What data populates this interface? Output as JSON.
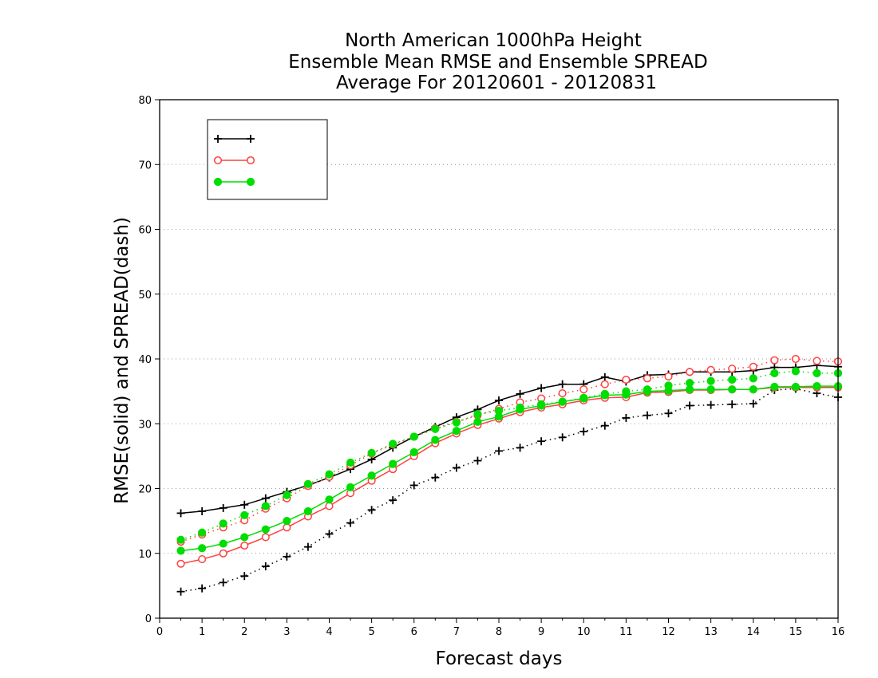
{
  "chart_data": {
    "type": "line",
    "title_lines": [
      "North American 1000hPa Height",
      "Ensemble Mean RMSE and Ensemble SPREAD",
      "Average For 20120601 - 20120831"
    ],
    "xlabel": "Forecast days",
    "ylabel": "RMSE(solid) and SPREAD(dash)",
    "xlim": [
      0,
      16
    ],
    "ylim": [
      0,
      80
    ],
    "xticks": [
      "0",
      "1",
      "2",
      "3",
      "4",
      "5",
      "6",
      "7",
      "8",
      "9",
      "10",
      "11",
      "12",
      "13",
      "14",
      "15",
      "16"
    ],
    "yticks": [
      "0",
      "10",
      "20",
      "30",
      "40",
      "50",
      "60",
      "70",
      "80"
    ],
    "grid": "horizontal dotted",
    "legend_placement": "top-left",
    "x": [
      0.5,
      1.0,
      1.5,
      2.0,
      2.5,
      3.0,
      3.5,
      4.0,
      4.5,
      5.0,
      5.5,
      6.0,
      6.5,
      7.0,
      7.5,
      8.0,
      8.5,
      9.0,
      9.5,
      10.0,
      10.5,
      11.0,
      11.5,
      12.0,
      12.5,
      13.0,
      13.5,
      14.0,
      14.5,
      15.0,
      15.5,
      16.0
    ],
    "series": [
      {
        "name": "",
        "legend_label": "",
        "color": "#000000",
        "marker": "plus",
        "rmse": [
          16.2,
          16.5,
          17.0,
          17.5,
          18.5,
          19.5,
          20.5,
          21.7,
          23.0,
          24.5,
          26.3,
          28.0,
          29.5,
          31.0,
          32.2,
          33.6,
          34.6,
          35.5,
          36.1,
          36.1,
          37.2,
          36.5,
          37.5,
          37.6,
          38.0,
          38.0,
          38.0,
          38.2,
          38.7,
          38.7,
          39.0,
          38.8
        ],
        "spread": [
          4.1,
          4.6,
          5.5,
          6.5,
          8.0,
          9.5,
          11.0,
          13.0,
          14.7,
          16.7,
          18.2,
          20.5,
          21.7,
          23.2,
          24.3,
          25.8,
          26.3,
          27.3,
          27.9,
          28.8,
          29.7,
          30.9,
          31.3,
          31.6,
          32.8,
          32.9,
          33.0,
          33.1,
          35.2,
          35.4,
          34.7,
          34.1
        ]
      },
      {
        "name": "",
        "legend_label": "",
        "color": "#ff4040",
        "marker": "open-circle",
        "rmse": [
          8.4,
          9.1,
          10.0,
          11.2,
          12.5,
          14.0,
          15.7,
          17.3,
          19.3,
          21.2,
          23.0,
          25.0,
          27.0,
          28.5,
          29.8,
          30.8,
          31.8,
          32.5,
          33.0,
          33.6,
          34.0,
          34.1,
          34.8,
          34.9,
          35.2,
          35.2,
          35.3,
          35.3,
          35.6,
          35.6,
          35.6,
          35.6
        ],
        "spread": [
          11.8,
          12.9,
          14.0,
          15.1,
          16.9,
          18.5,
          20.4,
          21.8,
          23.6,
          25.4,
          26.8,
          28.0,
          29.3,
          30.3,
          31.3,
          32.3,
          33.3,
          33.9,
          34.7,
          35.3,
          36.1,
          36.8,
          37.0,
          37.3,
          38.0,
          38.3,
          38.5,
          38.8,
          39.8,
          40.0,
          39.7,
          39.6
        ]
      },
      {
        "name": "",
        "legend_label": "",
        "color": "#00dd00",
        "marker": "filled-circle",
        "rmse": [
          10.4,
          10.8,
          11.5,
          12.5,
          13.7,
          15.0,
          16.5,
          18.3,
          20.2,
          22.0,
          23.8,
          25.6,
          27.5,
          28.9,
          30.3,
          31.1,
          32.2,
          32.8,
          33.4,
          33.9,
          34.4,
          34.5,
          35.0,
          35.1,
          35.3,
          35.3,
          35.3,
          35.3,
          35.7,
          35.7,
          35.8,
          35.8
        ],
        "spread": [
          12.1,
          13.2,
          14.6,
          15.9,
          17.3,
          19.0,
          20.7,
          22.2,
          24.0,
          25.5,
          26.9,
          28.0,
          29.2,
          30.2,
          31.5,
          32.0,
          32.5,
          33.0,
          33.4,
          34.0,
          34.6,
          35.0,
          35.3,
          35.9,
          36.3,
          36.6,
          36.8,
          37.0,
          37.8,
          38.1,
          37.8,
          37.8
        ]
      }
    ]
  }
}
